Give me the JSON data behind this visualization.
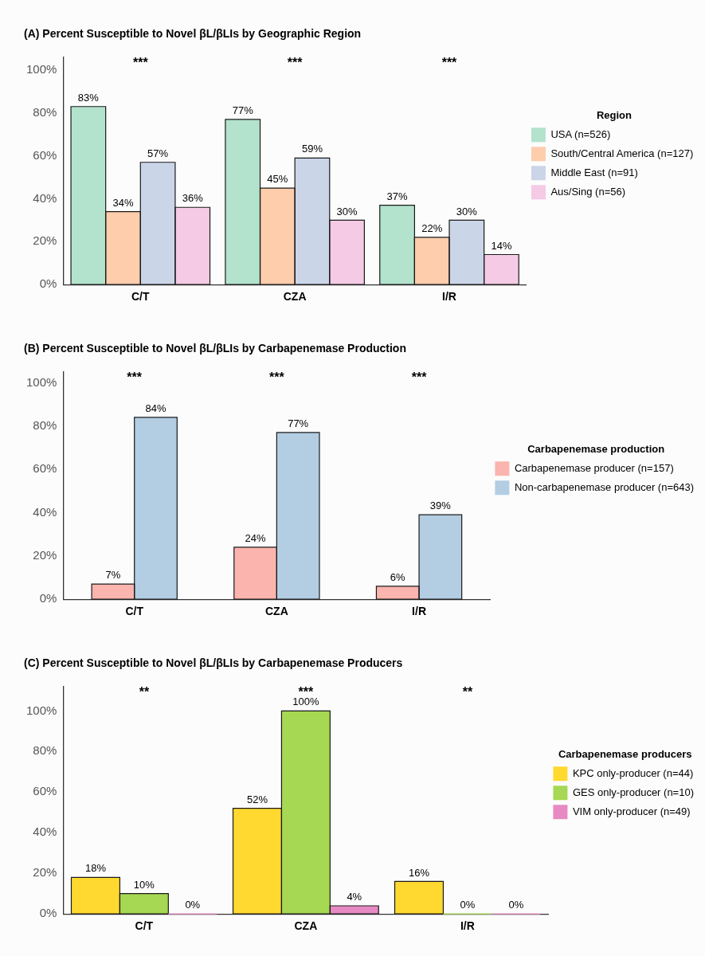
{
  "chart_data": [
    {
      "type": "bar",
      "title": "(A) Percent Susceptible to Novel βL/βLIs by Geographic Region",
      "categories": [
        "C/T",
        "CZA",
        "I/R"
      ],
      "legend_title": "Region",
      "legend": "right",
      "ylim": [
        0,
        106
      ],
      "yticks": [
        {
          "value": 0,
          "label": "0%"
        },
        {
          "value": 20,
          "label": "20%"
        },
        {
          "value": 40,
          "label": "40%"
        },
        {
          "value": 60,
          "label": "60%"
        },
        {
          "value": 80,
          "label": "80%"
        },
        {
          "value": 100,
          "label": "100%"
        }
      ],
      "grid": false,
      "series": [
        {
          "name": "USA (n=526)",
          "color": "#b3e2cd",
          "values": [
            83,
            77,
            37
          ],
          "value_labels": [
            "83%",
            "77%",
            "37%"
          ]
        },
        {
          "name": "South/Central America (n=127)",
          "color": "#fdcdac",
          "values": [
            34,
            45,
            22
          ],
          "value_labels": [
            "34%",
            "45%",
            "22%"
          ]
        },
        {
          "name": "Middle East (n=91)",
          "color": "#cbd5e8",
          "values": [
            57,
            59,
            30
          ],
          "value_labels": [
            "57%",
            "59%",
            "30%"
          ]
        },
        {
          "name": "Aus/Sing (n=56)",
          "color": "#f4cae4",
          "values": [
            36,
            30,
            14
          ],
          "value_labels": [
            "36%",
            "30%",
            "14%"
          ]
        }
      ],
      "annotations": [
        "***",
        "***",
        "***"
      ]
    },
    {
      "type": "bar",
      "title": "(B) Percent Susceptible to Novel βL/βLIs by Carbapenemase Production",
      "categories": [
        "C/T",
        "CZA",
        "I/R"
      ],
      "legend_title": "Carbapenemase production",
      "legend": "right",
      "ylim": [
        0,
        105
      ],
      "yticks": [
        {
          "value": 0,
          "label": "0%"
        },
        {
          "value": 20,
          "label": "20%"
        },
        {
          "value": 40,
          "label": "40%"
        },
        {
          "value": 60,
          "label": "60%"
        },
        {
          "value": 80,
          "label": "80%"
        },
        {
          "value": 100,
          "label": "100%"
        }
      ],
      "grid": false,
      "series": [
        {
          "name": "Carbapenemase producer (n=157)",
          "color": "#fbb4ae",
          "values": [
            7,
            24,
            6
          ],
          "value_labels": [
            "7%",
            "24%",
            "6%"
          ]
        },
        {
          "name": "Non-carbapenemase producer (n=643)",
          "color": "#b3cde3",
          "values": [
            84,
            77,
            39
          ],
          "value_labels": [
            "84%",
            "77%",
            "39%"
          ]
        }
      ],
      "annotations": [
        "***",
        "***",
        "***"
      ]
    },
    {
      "type": "bar",
      "title": "(C) Percent Susceptible to Novel βL/βLIs by Carbapenemase Producers",
      "categories": [
        "C/T",
        "CZA",
        "I/R"
      ],
      "legend_title": "Carbapenemase producers",
      "legend": "right",
      "ylim": [
        0,
        112
      ],
      "yticks": [
        {
          "value": 0,
          "label": "0%"
        },
        {
          "value": 20,
          "label": "20%"
        },
        {
          "value": 40,
          "label": "40%"
        },
        {
          "value": 60,
          "label": "60%"
        },
        {
          "value": 80,
          "label": "80%"
        },
        {
          "value": 100,
          "label": "100%"
        }
      ],
      "grid": false,
      "series": [
        {
          "name": "KPC only-producer (n=44)",
          "color": "#ffd92f",
          "values": [
            18,
            52,
            16
          ],
          "value_labels": [
            "18%",
            "52%",
            "16%"
          ]
        },
        {
          "name": "GES only-producer (n=10)",
          "color": "#a6d854",
          "values": [
            10,
            100,
            0
          ],
          "value_labels": [
            "10%",
            "100%",
            "0%"
          ]
        },
        {
          "name": "VIM only-producer (n=49)",
          "color": "#e78ac3",
          "values": [
            0,
            4,
            0
          ],
          "value_labels": [
            "0%",
            "4%",
            "0%"
          ]
        }
      ],
      "annotations": [
        "**",
        "***",
        "**"
      ]
    }
  ]
}
